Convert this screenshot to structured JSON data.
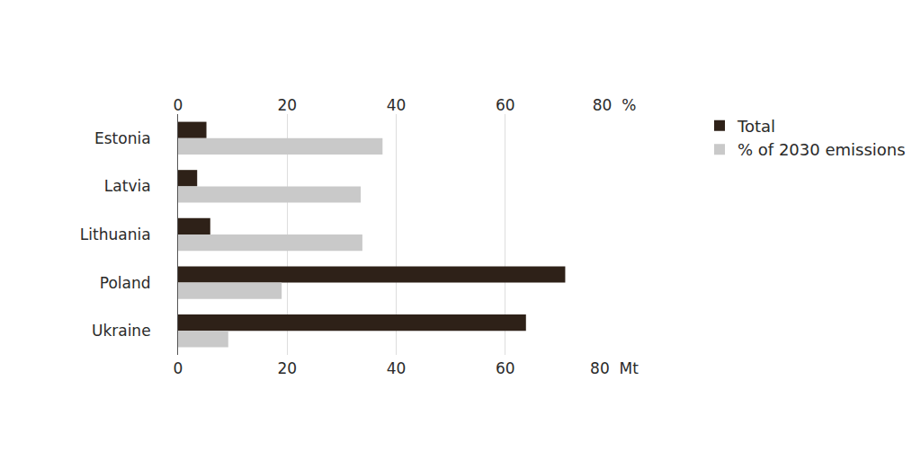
{
  "chart_data": {
    "type": "bar",
    "orientation": "horizontal",
    "categories": [
      "Estonia",
      "Latvia",
      "Lithuania",
      "Poland",
      "Ukraine"
    ],
    "series": [
      {
        "name": "Total",
        "color": "#2e2118",
        "values": [
          5.2,
          3.5,
          5.9,
          71,
          63.8
        ]
      },
      {
        "name": "% of 2030 emissions",
        "color": "#c9c9c9",
        "axis": "x2",
        "values": [
          37.5,
          33.5,
          33.8,
          19,
          9.2
        ]
      }
    ],
    "xlim": [
      0,
      80
    ],
    "xticks": [
      0,
      20,
      40,
      60,
      {
        "value": 80,
        "label": "80  Mt"
      }
    ],
    "x2lim": [
      0,
      80
    ],
    "x2ticks": [
      0,
      20,
      40,
      60,
      {
        "value": 80,
        "label": "80  %"
      }
    ],
    "grid": true,
    "legend": "top right"
  }
}
